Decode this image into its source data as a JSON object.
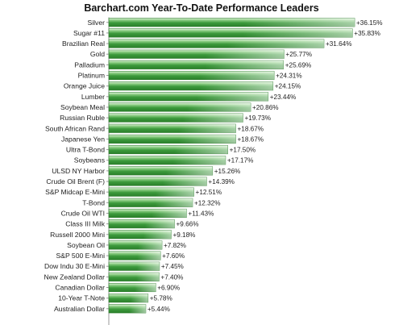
{
  "chart_data": {
    "type": "bar",
    "orientation": "horizontal",
    "title": "Barchart.com Year-To-Date Performance Leaders",
    "xlabel": "",
    "ylabel": "",
    "xlim": [
      0,
      40
    ],
    "grid": false,
    "bar_color": "#3f9a3f",
    "categories": [
      "Silver",
      "Sugar #11",
      "Brazilian Real",
      "Gold",
      "Palladium",
      "Platinum",
      "Orange Juice",
      "Lumber",
      "Soybean Meal",
      "Russian Ruble",
      "South African Rand",
      "Japanese Yen",
      "Ultra T-Bond",
      "Soybeans",
      "ULSD NY Harbor",
      "Crude Oil Brent (F)",
      "S&P Midcap E-Mini",
      "T-Bond",
      "Crude Oil WTI",
      "Class III Milk",
      "Russell 2000 Mini",
      "Soybean Oil",
      "S&P 500 E-Mini",
      "Dow Indu 30 E-Mini",
      "New Zealand Dollar",
      "Canadian Dollar",
      "10-Year T-Note",
      "Australian Dollar"
    ],
    "values": [
      36.15,
      35.83,
      31.64,
      25.77,
      25.69,
      24.31,
      24.15,
      23.44,
      20.86,
      19.73,
      18.67,
      18.67,
      17.5,
      17.17,
      15.26,
      14.39,
      12.51,
      12.32,
      11.43,
      9.66,
      9.18,
      7.82,
      7.6,
      7.45,
      7.4,
      6.9,
      5.78,
      5.44
    ],
    "value_labels": [
      "+36.15%",
      "+35.83%",
      "+31.64%",
      "+25.77%",
      "+25.69%",
      "+24.31%",
      "+24.15%",
      "+23.44%",
      "+20.86%",
      "+19.73%",
      "+18.67%",
      "+18.67%",
      "+17.50%",
      "+17.17%",
      "+15.26%",
      "+14.39%",
      "+12.51%",
      "+12.32%",
      "+11.43%",
      "+9.66%",
      "+9.18%",
      "+7.82%",
      "+7.60%",
      "+7.45%",
      "+7.40%",
      "+6.90%",
      "+5.78%",
      "+5.44%"
    ]
  }
}
